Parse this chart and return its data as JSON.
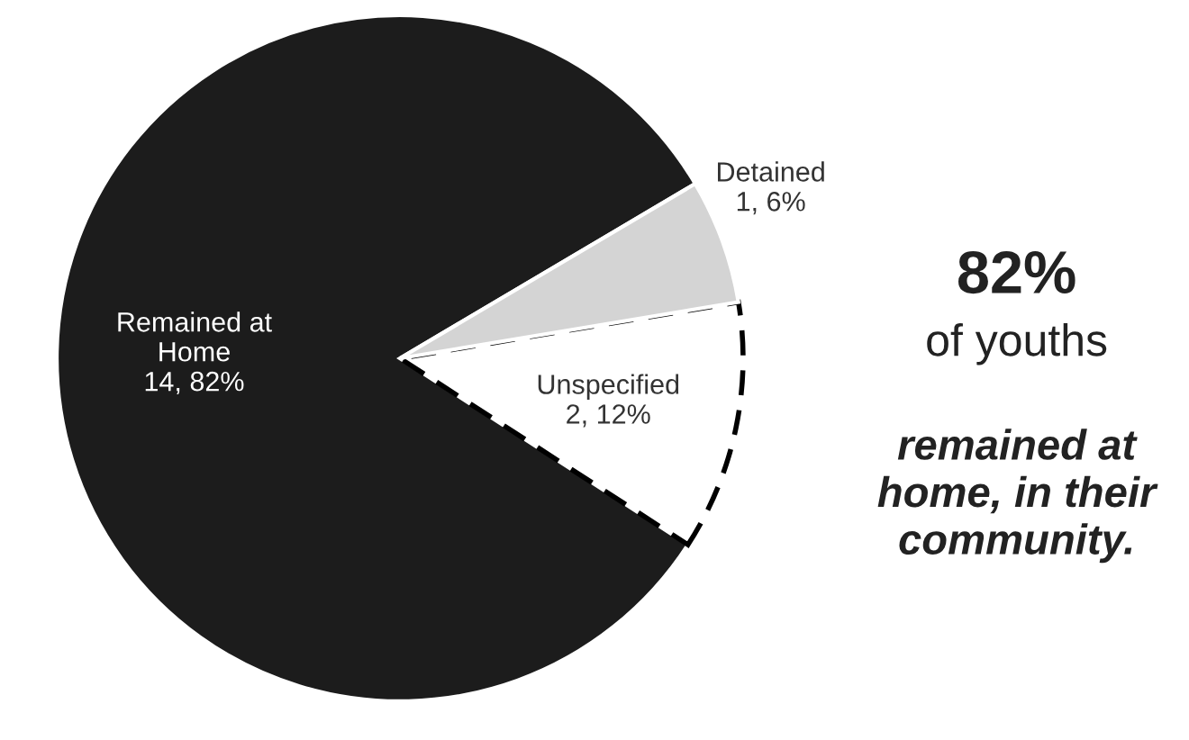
{
  "chart_data": {
    "type": "pie",
    "categories": [
      "Remained at\nHome",
      "Unspecified",
      "Detained"
    ],
    "values": [
      14,
      2,
      1
    ],
    "value_labels": [
      "14, 82%",
      "2, 12%",
      "1, 6%"
    ],
    "colors": [
      "#1c1c1c",
      "#ffffff",
      "#d4d4d4"
    ],
    "annotations": [
      "82%",
      "of youths",
      "remained at\nhome, in their\ncommunity."
    ]
  }
}
